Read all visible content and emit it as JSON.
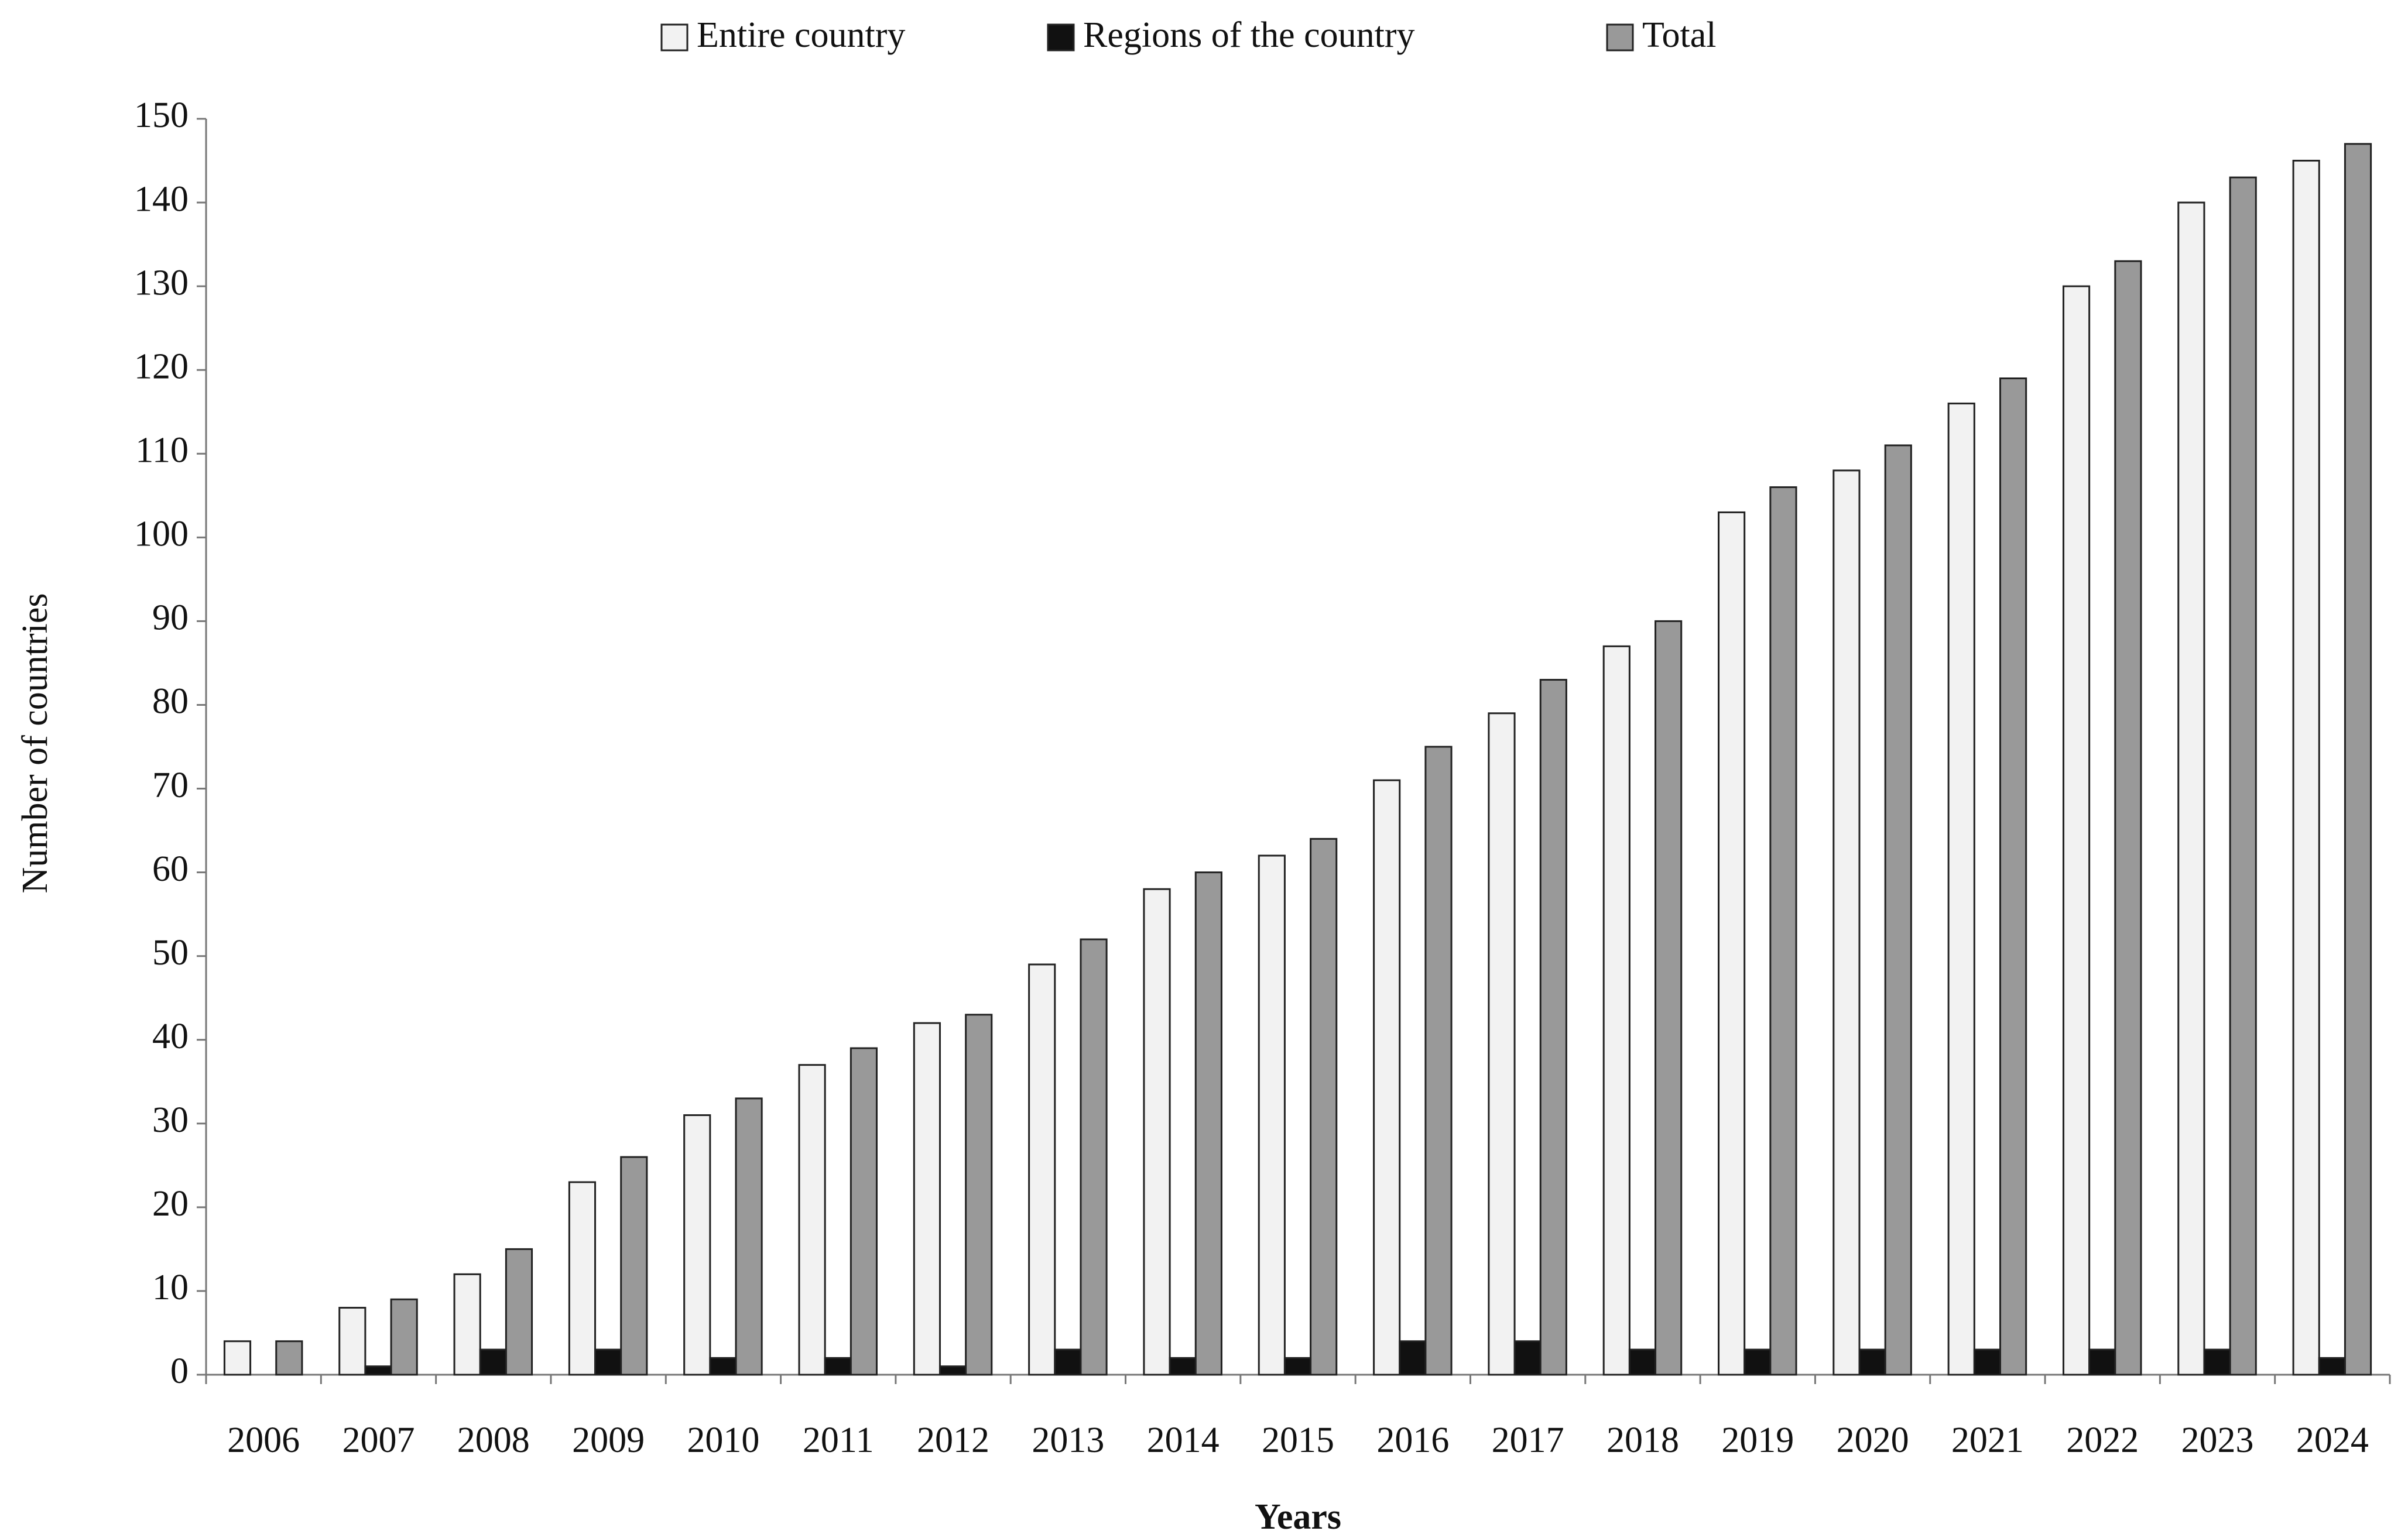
{
  "chart_data": {
    "type": "bar",
    "x_label": "Years",
    "y_label": "Number of countries",
    "categories": [
      "2006",
      "2007",
      "2008",
      "2009",
      "2010",
      "2011",
      "2012",
      "2013",
      "2014",
      "2015",
      "2016",
      "2017",
      "2018",
      "2019",
      "2020",
      "2021",
      "2022",
      "2023",
      "2024"
    ],
    "series": [
      {
        "name": "Entire country",
        "color": "#f2f2f2",
        "values": [
          4,
          8,
          12,
          23,
          31,
          37,
          42,
          49,
          58,
          62,
          71,
          79,
          87,
          103,
          108,
          116,
          130,
          140,
          145
        ]
      },
      {
        "name": "Regions of the country",
        "color": "#111111",
        "values": [
          0,
          1,
          3,
          3,
          2,
          2,
          1,
          3,
          2,
          2,
          4,
          4,
          3,
          3,
          3,
          3,
          3,
          3,
          2
        ]
      },
      {
        "name": "Total",
        "color": "#999999",
        "values": [
          4,
          9,
          15,
          26,
          33,
          39,
          43,
          52,
          60,
          64,
          75,
          83,
          90,
          106,
          111,
          119,
          133,
          143,
          147
        ]
      }
    ],
    "ylim": [
      0,
      150
    ],
    "yticks": [
      0,
      10,
      20,
      30,
      40,
      50,
      60,
      70,
      80,
      90,
      100,
      110,
      120,
      130,
      140,
      150
    ],
    "grid": false,
    "legend": "top"
  }
}
